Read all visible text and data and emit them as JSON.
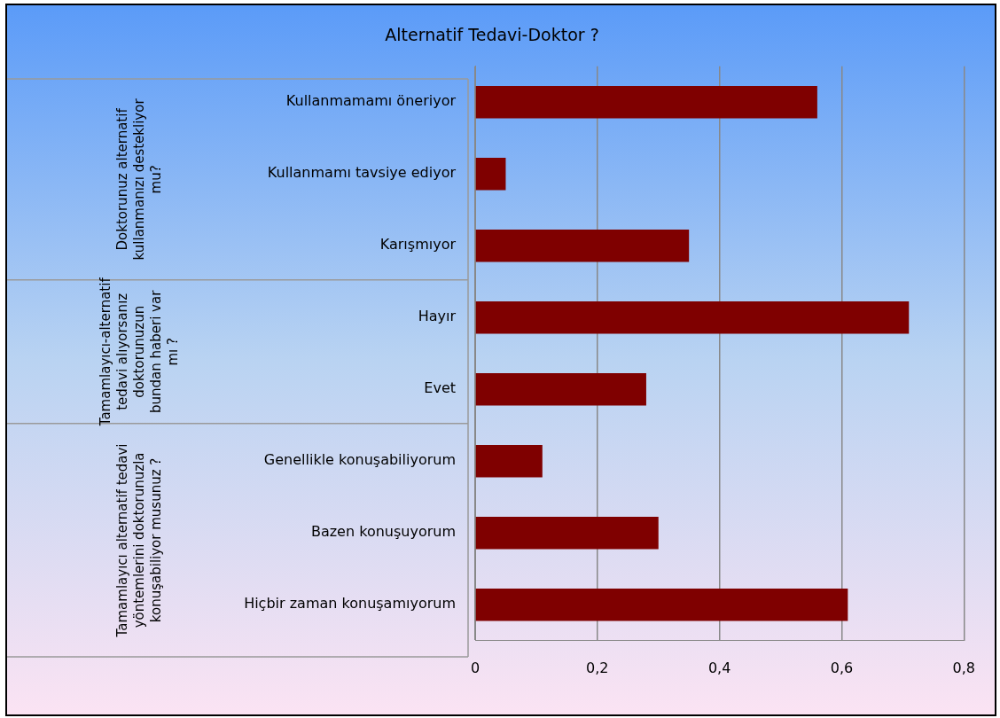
{
  "chart_data": {
    "type": "bar",
    "orientation": "horizontal",
    "title": "Alternatif Tedavi-Doktor ?",
    "categories": [
      "Kullanmamamı öneriyor",
      "Kullanmamı tavsiye ediyor",
      "Karışmıyor",
      "Hayır",
      "Evet",
      "Genellikle konuşabiliyorum",
      "Bazen konuşuyorum",
      "Hiçbir zaman konuşamıyorum"
    ],
    "values": [
      0.56,
      0.05,
      0.35,
      0.71,
      0.28,
      0.11,
      0.3,
      0.61
    ],
    "color": "#7f0000",
    "xlim": [
      0,
      0.8
    ],
    "xticks": [
      {
        "value": 0,
        "label": "0"
      },
      {
        "value": 0.2,
        "label": "0,2"
      },
      {
        "value": 0.4,
        "label": "0,4"
      },
      {
        "value": 0.6,
        "label": "0,6"
      },
      {
        "value": 0.8,
        "label": "0,8"
      }
    ],
    "grid": "x",
    "annotations": [
      "Doktorunuz alternatif kullanmanızı destekliyor mu?",
      "Tamamlayıcı-alternatif tedavi alıyorsanız doktorunuzun bundan haberi var mı ?",
      "Tamamlayıcı alternatif tedavi yöntemlerini doktorunuzla konuşabiliyor musunuz ?"
    ]
  }
}
